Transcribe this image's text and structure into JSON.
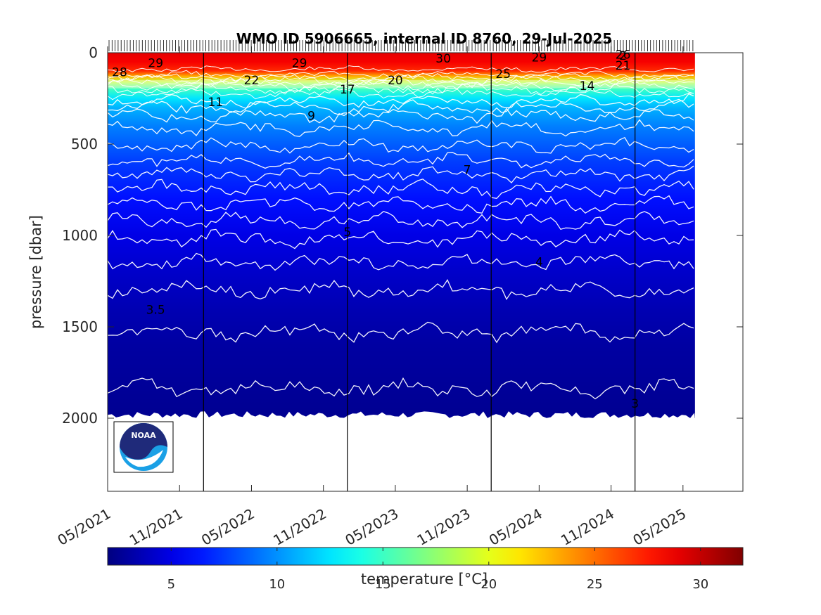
{
  "chart_data": {
    "type": "heatmap",
    "title": "WMO ID 5906665, internal ID 8760, 29-Jul-2025",
    "ylabel": "pressure [dbar]",
    "colorbar_label": "temperature [°C]",
    "y_axis_reversed": true,
    "ylim": [
      0,
      2400
    ],
    "xlim": [
      "2021-05",
      "2025-10"
    ],
    "data_extent": {
      "x_start": "2021-05",
      "x_end": "2025-06",
      "max_pressure": 2000
    },
    "y_ticks": [
      0,
      500,
      1000,
      1500,
      2000
    ],
    "x_ticks": [
      "05/2021",
      "11/2021",
      "05/2022",
      "11/2022",
      "05/2023",
      "11/2023",
      "05/2024",
      "11/2024",
      "05/2025"
    ],
    "year_boundaries": [
      "2022-01",
      "2023-01",
      "2024-01",
      "2025-01"
    ],
    "colorbar": {
      "colormap": "jet",
      "min": 2,
      "max": 32,
      "ticks": [
        5,
        10,
        15,
        20,
        25,
        30
      ]
    },
    "temperature_profile": [
      {
        "pressure": 0,
        "temperature": 29
      },
      {
        "pressure": 50,
        "temperature": 28.5
      },
      {
        "pressure": 100,
        "temperature": 27
      },
      {
        "pressure": 130,
        "temperature": 23
      },
      {
        "pressure": 160,
        "temperature": 19
      },
      {
        "pressure": 200,
        "temperature": 15
      },
      {
        "pressure": 250,
        "temperature": 12.5
      },
      {
        "pressure": 300,
        "temperature": 11
      },
      {
        "pressure": 400,
        "temperature": 9.5
      },
      {
        "pressure": 500,
        "temperature": 8.5
      },
      {
        "pressure": 600,
        "temperature": 7.5
      },
      {
        "pressure": 800,
        "temperature": 6.2
      },
      {
        "pressure": 1000,
        "temperature": 5
      },
      {
        "pressure": 1200,
        "temperature": 4.2
      },
      {
        "pressure": 1400,
        "temperature": 3.5
      },
      {
        "pressure": 1600,
        "temperature": 3
      },
      {
        "pressure": 2000,
        "temperature": 2.5
      }
    ],
    "isotherms": [
      {
        "temperature": 28,
        "mean_pressure": 90,
        "amplitude": 15
      },
      {
        "temperature": 26,
        "mean_pressure": 120,
        "amplitude": 18
      },
      {
        "temperature": 24,
        "mean_pressure": 135,
        "amplitude": 20
      },
      {
        "temperature": 22,
        "mean_pressure": 150,
        "amplitude": 22
      },
      {
        "temperature": 20,
        "mean_pressure": 165,
        "amplitude": 22
      },
      {
        "temperature": 18,
        "mean_pressure": 180,
        "amplitude": 24
      },
      {
        "temperature": 16,
        "mean_pressure": 200,
        "amplitude": 25
      },
      {
        "temperature": 14,
        "mean_pressure": 225,
        "amplitude": 25
      },
      {
        "temperature": 12,
        "mean_pressure": 265,
        "amplitude": 30
      },
      {
        "temperature": 11,
        "mean_pressure": 300,
        "amplitude": 35
      },
      {
        "temperature": 10,
        "mean_pressure": 345,
        "amplitude": 35
      },
      {
        "temperature": 9,
        "mean_pressure": 415,
        "amplitude": 35
      },
      {
        "temperature": 8,
        "mean_pressure": 510,
        "amplitude": 35
      },
      {
        "temperature": 7.5,
        "mean_pressure": 590,
        "amplitude": 35
      },
      {
        "temperature": 7,
        "mean_pressure": 665,
        "amplitude": 35
      },
      {
        "temperature": 6.5,
        "mean_pressure": 745,
        "amplitude": 40
      },
      {
        "temperature": 6,
        "mean_pressure": 830,
        "amplitude": 40
      },
      {
        "temperature": 5.5,
        "mean_pressure": 920,
        "amplitude": 40
      },
      {
        "temperature": 5,
        "mean_pressure": 1020,
        "amplitude": 40
      },
      {
        "temperature": 4.5,
        "mean_pressure": 1145,
        "amplitude": 40
      },
      {
        "temperature": 4,
        "mean_pressure": 1300,
        "amplitude": 45
      },
      {
        "temperature": 3.5,
        "mean_pressure": 1530,
        "amplitude": 45
      },
      {
        "temperature": 3,
        "mean_pressure": 1840,
        "amplitude": 45
      }
    ],
    "contour_labels": [
      {
        "text": "28",
        "date": "2021-06",
        "pressure": 105
      },
      {
        "text": "29",
        "date": "2021-09",
        "pressure": 55
      },
      {
        "text": "29",
        "date": "2022-09",
        "pressure": 55
      },
      {
        "text": "30",
        "date": "2023-09",
        "pressure": 30
      },
      {
        "text": "29",
        "date": "2024-05",
        "pressure": 25
      },
      {
        "text": "2",
        "date": "2024-12",
        "pressure": 15
      },
      {
        "text": "26",
        "date": "2024-12",
        "pressure": 10
      },
      {
        "text": "21",
        "date": "2024-12",
        "pressure": 70
      },
      {
        "text": "25",
        "date": "2024-02",
        "pressure": 115
      },
      {
        "text": "22",
        "date": "2022-05",
        "pressure": 150
      },
      {
        "text": "20",
        "date": "2023-05",
        "pressure": 150
      },
      {
        "text": "17",
        "date": "2023-01",
        "pressure": 200
      },
      {
        "text": "14",
        "date": "2024-09",
        "pressure": 180
      },
      {
        "text": "11",
        "date": "2022-02",
        "pressure": 270
      },
      {
        "text": "9",
        "date": "2022-10",
        "pressure": 345
      },
      {
        "text": "7",
        "date": "2023-11",
        "pressure": 640
      },
      {
        "text": "5",
        "date": "2023-01",
        "pressure": 980
      },
      {
        "text": "4",
        "date": "2024-05",
        "pressure": 1145
      },
      {
        "text": "3.5",
        "date": "2021-09",
        "pressure": 1405
      },
      {
        "text": "3",
        "date": "2025-01",
        "pressure": 1920
      }
    ]
  },
  "logo": {
    "text": "NOAA"
  },
  "colors": {
    "axis": "#262626",
    "contour": "#ffffff",
    "year_line": "#000000"
  }
}
